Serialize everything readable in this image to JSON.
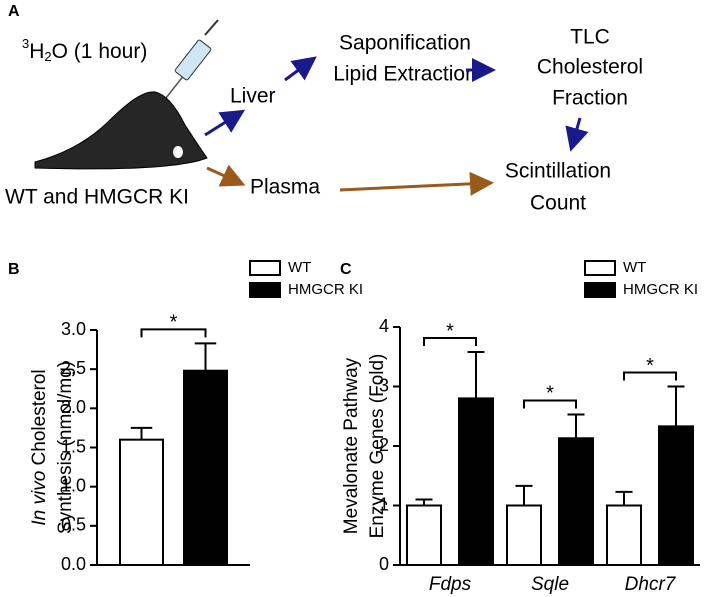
{
  "panel_a": {
    "label": "A",
    "tracer": {
      "mass": "3",
      "element": "H",
      "count": "2",
      "rest": "O (1 hour)"
    },
    "subject": "WT and HMGCR KI",
    "liver": "Liver",
    "plasma": "Plasma",
    "extraction": [
      "Saponification",
      "Lipid Extraction"
    ],
    "tlc": [
      "TLC",
      "Cholesterol",
      "Fraction"
    ],
    "count": [
      "Scintillation",
      "Count"
    ]
  },
  "chart_data": [
    {
      "type": "bar",
      "panel": "B",
      "ylabel": {
        "italic": "In vivo",
        "rest": "Cholesterol",
        "line2": "Synthesis (nmol/mg)"
      },
      "categories": [
        null
      ],
      "series": [
        {
          "name": "WT",
          "color": "#ffffff",
          "values": [
            1.6
          ],
          "errors": [
            0.15
          ]
        },
        {
          "name": "HMGCR KI",
          "color": "#000000",
          "values": [
            2.48
          ],
          "errors": [
            0.35
          ]
        }
      ],
      "significance": [
        "*"
      ],
      "ylim": [
        0,
        3
      ],
      "yticks": [
        {
          "value": 0,
          "label": "0.0"
        },
        0.5,
        {
          "value": 1,
          "label": "1.0"
        },
        1.5,
        {
          "value": 2,
          "label": "2.0"
        },
        2.5,
        {
          "value": 3,
          "label": "3.0"
        }
      ]
    },
    {
      "type": "bar",
      "panel": "C",
      "ylabel": {
        "line1": "Mevalonate Pathway",
        "line2": "Enzyme Genes (Fold)"
      },
      "categories": [
        "Fdps",
        "Sqle",
        "Dhcr7"
      ],
      "italic_categories": true,
      "series": [
        {
          "name": "WT",
          "color": "#ffffff",
          "values": [
            1,
            1,
            1
          ],
          "errors": [
            0.1,
            0.33,
            0.23
          ]
        },
        {
          "name": "HMGCR KI",
          "color": "#000000",
          "values": [
            2.8,
            2.13,
            2.33
          ],
          "errors": [
            0.78,
            0.4,
            0.67
          ]
        }
      ],
      "significance": [
        "*",
        "*",
        "*"
      ],
      "ylim": [
        0,
        4
      ],
      "yticks": [
        0,
        1,
        2,
        3,
        4
      ]
    }
  ]
}
